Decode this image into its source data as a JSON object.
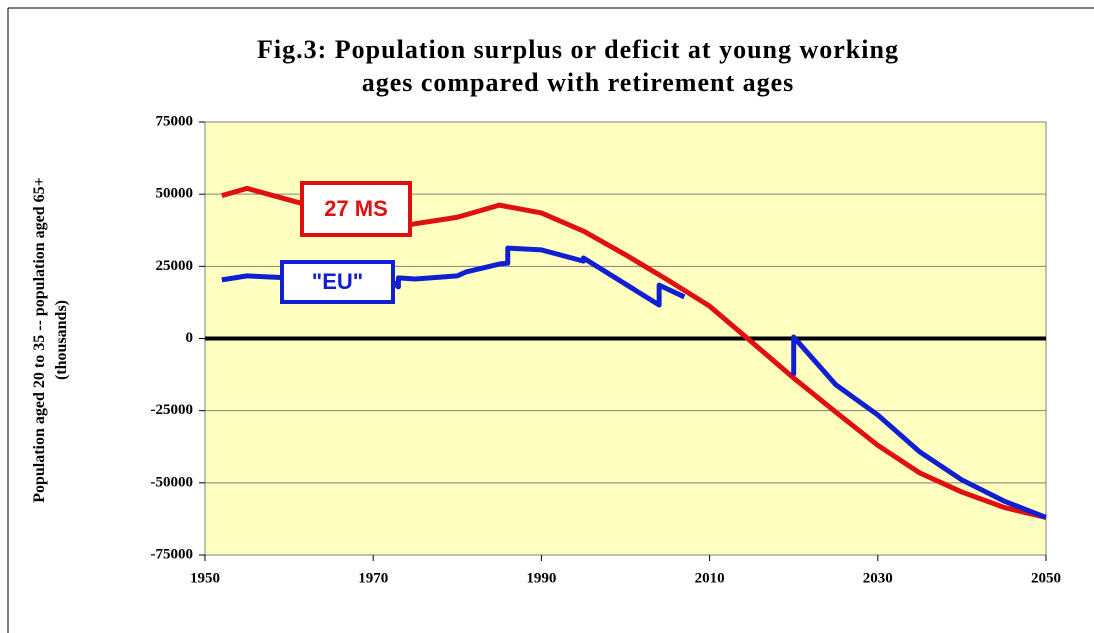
{
  "chart_data": {
    "type": "line",
    "title": [
      "Fig.3: Population surplus or deficit at young working",
      "ages compared with retirement ages"
    ],
    "y_label": [
      "Population aged 20 to 35  -- population aged 65+",
      "(thousands)"
    ],
    "xlim": [
      1950,
      2050
    ],
    "xticks": [
      1950,
      1970,
      1990,
      2010,
      2030,
      2050
    ],
    "ylim": [
      -75000,
      75000
    ],
    "yticks": [
      -75000,
      -50000,
      -25000,
      0,
      25000,
      50000,
      75000
    ],
    "grid": true,
    "plot_background": "#ffffc0",
    "series": [
      {
        "name": "27 MS",
        "color": "#e01010",
        "x": [
          1952,
          1955,
          1960,
          1965,
          1970,
          1974,
          1980,
          1985,
          1990,
          1995,
          2000,
          2005,
          2010,
          2015,
          2020,
          2025,
          2030,
          2035,
          2040,
          2045,
          2050
        ],
        "values": [
          49500,
          52000,
          48000,
          44000,
          40500,
          39300,
          42000,
          46200,
          43500,
          37200,
          29000,
          20300,
          11200,
          -1200,
          -13700,
          -25500,
          -37000,
          -46600,
          -53200,
          -58500,
          -62000
        ]
      },
      {
        "name": "\"EU\"",
        "color": "#1020d0",
        "x": [
          1952,
          1955,
          1960,
          1972,
          1973,
          1973,
          1975,
          1980,
          1981,
          1985,
          1986,
          1986,
          1990,
          1995,
          1995,
          2004,
          2004,
          2007,
          null,
          2020,
          2020,
          2025,
          2030,
          2035,
          2040,
          2045,
          2050
        ],
        "values": [
          20300,
          21700,
          21000,
          20500,
          17900,
          21000,
          20600,
          21700,
          23000,
          25800,
          26100,
          31300,
          30700,
          26800,
          27900,
          11600,
          18500,
          14400,
          null,
          -12800,
          500,
          -16000,
          -26500,
          -39300,
          -49000,
          -56300,
          -62000
        ]
      }
    ]
  }
}
